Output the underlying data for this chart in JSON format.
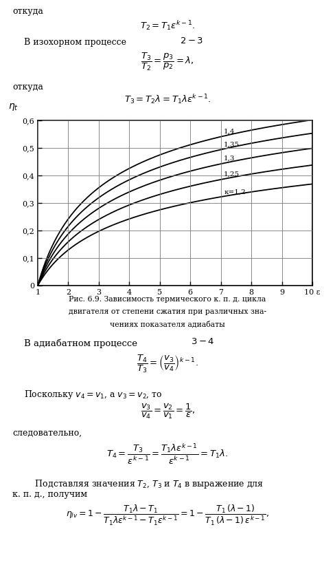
{
  "kappa_values": [
    1.2,
    1.25,
    1.3,
    1.35,
    1.4
  ],
  "kappa_labels": [
    "к=1,2",
    "1,25",
    "1,3",
    "1,35",
    "1,4"
  ],
  "epsilon_min": 1,
  "epsilon_max": 10,
  "eta_min": 0,
  "eta_max": 0.6,
  "y_tick_labels": [
    "0",
    "0,1",
    "0,2",
    "0,3",
    "0,4",
    "0,5",
    "0,6"
  ],
  "background_color": "#ffffff",
  "line_color": "#000000",
  "grid_color": "#888888"
}
